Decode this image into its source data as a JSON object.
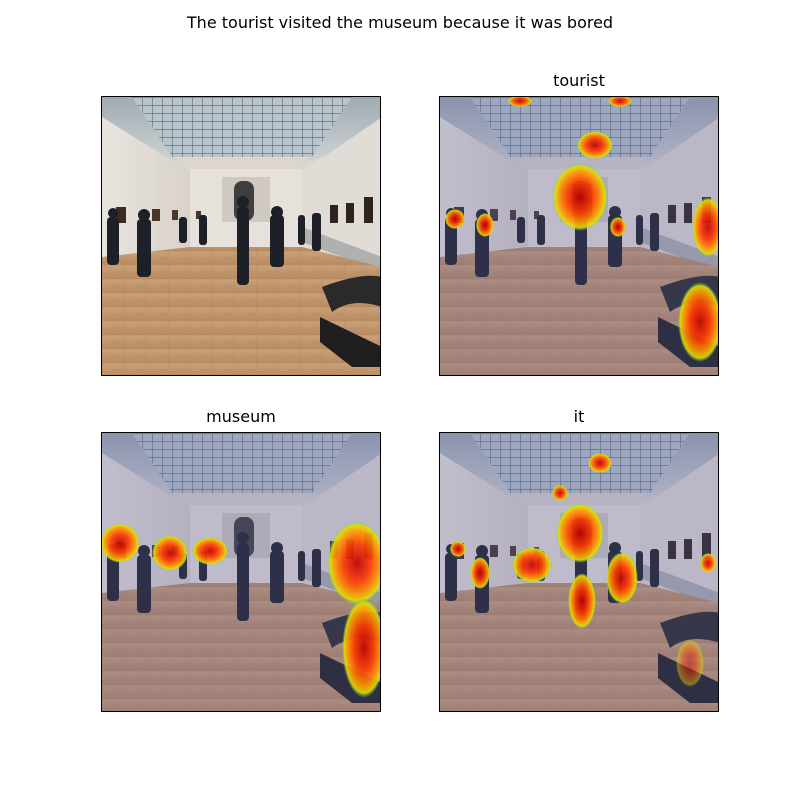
{
  "figure": {
    "title": "The tourist visited the museum because it was bored"
  },
  "panels": [
    {
      "id": "original",
      "label": "",
      "overlay": false
    },
    {
      "id": "tourist",
      "label": "tourist",
      "overlay": true
    },
    {
      "id": "museum",
      "label": "museum",
      "overlay": true
    },
    {
      "id": "it",
      "label": "it",
      "overlay": true
    }
  ]
}
